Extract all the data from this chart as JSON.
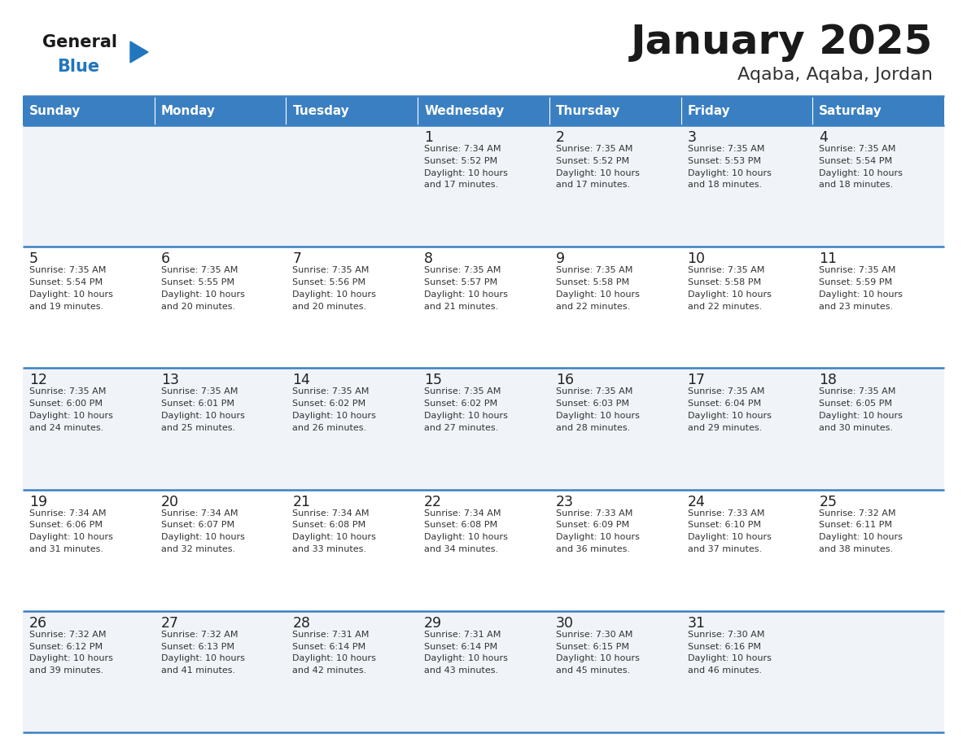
{
  "title": "January 2025",
  "subtitle": "Aqaba, Aqaba, Jordan",
  "days_of_week": [
    "Sunday",
    "Monday",
    "Tuesday",
    "Wednesday",
    "Thursday",
    "Friday",
    "Saturday"
  ],
  "header_bg": "#3a7fc1",
  "header_text": "#ffffff",
  "row_bg_odd": "#f0f4f8",
  "row_bg_even": "#ffffff",
  "cell_text_color": "#333333",
  "day_num_color": "#222222",
  "border_color": "#3a7fc1",
  "title_color": "#1a1a1a",
  "subtitle_color": "#333333",
  "calendar": [
    [
      {
        "day": null,
        "info": null
      },
      {
        "day": null,
        "info": null
      },
      {
        "day": null,
        "info": null
      },
      {
        "day": 1,
        "info": "Sunrise: 7:34 AM\nSunset: 5:52 PM\nDaylight: 10 hours\nand 17 minutes."
      },
      {
        "day": 2,
        "info": "Sunrise: 7:35 AM\nSunset: 5:52 PM\nDaylight: 10 hours\nand 17 minutes."
      },
      {
        "day": 3,
        "info": "Sunrise: 7:35 AM\nSunset: 5:53 PM\nDaylight: 10 hours\nand 18 minutes."
      },
      {
        "day": 4,
        "info": "Sunrise: 7:35 AM\nSunset: 5:54 PM\nDaylight: 10 hours\nand 18 minutes."
      }
    ],
    [
      {
        "day": 5,
        "info": "Sunrise: 7:35 AM\nSunset: 5:54 PM\nDaylight: 10 hours\nand 19 minutes."
      },
      {
        "day": 6,
        "info": "Sunrise: 7:35 AM\nSunset: 5:55 PM\nDaylight: 10 hours\nand 20 minutes."
      },
      {
        "day": 7,
        "info": "Sunrise: 7:35 AM\nSunset: 5:56 PM\nDaylight: 10 hours\nand 20 minutes."
      },
      {
        "day": 8,
        "info": "Sunrise: 7:35 AM\nSunset: 5:57 PM\nDaylight: 10 hours\nand 21 minutes."
      },
      {
        "day": 9,
        "info": "Sunrise: 7:35 AM\nSunset: 5:58 PM\nDaylight: 10 hours\nand 22 minutes."
      },
      {
        "day": 10,
        "info": "Sunrise: 7:35 AM\nSunset: 5:58 PM\nDaylight: 10 hours\nand 22 minutes."
      },
      {
        "day": 11,
        "info": "Sunrise: 7:35 AM\nSunset: 5:59 PM\nDaylight: 10 hours\nand 23 minutes."
      }
    ],
    [
      {
        "day": 12,
        "info": "Sunrise: 7:35 AM\nSunset: 6:00 PM\nDaylight: 10 hours\nand 24 minutes."
      },
      {
        "day": 13,
        "info": "Sunrise: 7:35 AM\nSunset: 6:01 PM\nDaylight: 10 hours\nand 25 minutes."
      },
      {
        "day": 14,
        "info": "Sunrise: 7:35 AM\nSunset: 6:02 PM\nDaylight: 10 hours\nand 26 minutes."
      },
      {
        "day": 15,
        "info": "Sunrise: 7:35 AM\nSunset: 6:02 PM\nDaylight: 10 hours\nand 27 minutes."
      },
      {
        "day": 16,
        "info": "Sunrise: 7:35 AM\nSunset: 6:03 PM\nDaylight: 10 hours\nand 28 minutes."
      },
      {
        "day": 17,
        "info": "Sunrise: 7:35 AM\nSunset: 6:04 PM\nDaylight: 10 hours\nand 29 minutes."
      },
      {
        "day": 18,
        "info": "Sunrise: 7:35 AM\nSunset: 6:05 PM\nDaylight: 10 hours\nand 30 minutes."
      }
    ],
    [
      {
        "day": 19,
        "info": "Sunrise: 7:34 AM\nSunset: 6:06 PM\nDaylight: 10 hours\nand 31 minutes."
      },
      {
        "day": 20,
        "info": "Sunrise: 7:34 AM\nSunset: 6:07 PM\nDaylight: 10 hours\nand 32 minutes."
      },
      {
        "day": 21,
        "info": "Sunrise: 7:34 AM\nSunset: 6:08 PM\nDaylight: 10 hours\nand 33 minutes."
      },
      {
        "day": 22,
        "info": "Sunrise: 7:34 AM\nSunset: 6:08 PM\nDaylight: 10 hours\nand 34 minutes."
      },
      {
        "day": 23,
        "info": "Sunrise: 7:33 AM\nSunset: 6:09 PM\nDaylight: 10 hours\nand 36 minutes."
      },
      {
        "day": 24,
        "info": "Sunrise: 7:33 AM\nSunset: 6:10 PM\nDaylight: 10 hours\nand 37 minutes."
      },
      {
        "day": 25,
        "info": "Sunrise: 7:32 AM\nSunset: 6:11 PM\nDaylight: 10 hours\nand 38 minutes."
      }
    ],
    [
      {
        "day": 26,
        "info": "Sunrise: 7:32 AM\nSunset: 6:12 PM\nDaylight: 10 hours\nand 39 minutes."
      },
      {
        "day": 27,
        "info": "Sunrise: 7:32 AM\nSunset: 6:13 PM\nDaylight: 10 hours\nand 41 minutes."
      },
      {
        "day": 28,
        "info": "Sunrise: 7:31 AM\nSunset: 6:14 PM\nDaylight: 10 hours\nand 42 minutes."
      },
      {
        "day": 29,
        "info": "Sunrise: 7:31 AM\nSunset: 6:14 PM\nDaylight: 10 hours\nand 43 minutes."
      },
      {
        "day": 30,
        "info": "Sunrise: 7:30 AM\nSunset: 6:15 PM\nDaylight: 10 hours\nand 45 minutes."
      },
      {
        "day": 31,
        "info": "Sunrise: 7:30 AM\nSunset: 6:16 PM\nDaylight: 10 hours\nand 46 minutes."
      },
      {
        "day": null,
        "info": null
      }
    ]
  ],
  "logo_general_color": "#1a1a1a",
  "logo_blue_color": "#2176bd",
  "logo_triangle_color": "#2176bd",
  "fig_width": 11.88,
  "fig_height": 9.18,
  "dpi": 100
}
